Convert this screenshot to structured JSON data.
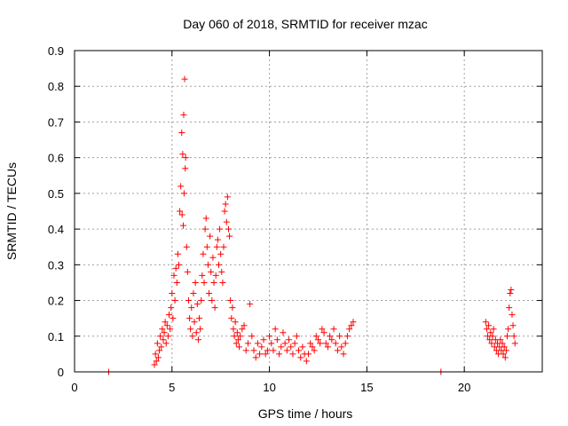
{
  "chart_data": {
    "type": "scatter",
    "title": "Day 060 of 2018, SRMTID for receiver mzac",
    "xlabel": "GPS time / hours",
    "ylabel": "SRMTID / TECUs",
    "xlim": [
      0,
      24
    ],
    "ylim": [
      0,
      0.9
    ],
    "x_ticks": [
      0,
      5,
      10,
      15,
      20
    ],
    "x_tick_labels": [
      "0",
      "5",
      "10",
      "15",
      "20"
    ],
    "y_ticks": [
      0,
      0.1,
      0.2,
      0.3,
      0.4,
      0.5,
      0.6,
      0.7,
      0.8,
      0.9
    ],
    "y_tick_labels": [
      "0",
      "0.1",
      "0.2",
      "0.3",
      "0.4",
      "0.5",
      "0.6",
      "0.7",
      "0.8",
      "0.9"
    ],
    "grid": true,
    "marker": "+",
    "color": "#ff0000",
    "series": [
      {
        "name": "SRMTID",
        "x": [
          1.75,
          18.8,
          4.1,
          4.15,
          4.2,
          4.25,
          4.3,
          4.35,
          4.4,
          4.45,
          4.5,
          4.55,
          4.6,
          4.65,
          4.7,
          4.75,
          4.8,
          4.85,
          4.9,
          4.95,
          5.0,
          5.05,
          5.1,
          5.15,
          5.2,
          5.25,
          5.3,
          5.35,
          5.4,
          5.45,
          5.5,
          5.52,
          5.55,
          5.58,
          5.6,
          5.62,
          5.65,
          5.68,
          5.7,
          5.75,
          5.8,
          5.85,
          5.9,
          5.95,
          6.0,
          6.05,
          6.1,
          6.15,
          6.2,
          6.25,
          6.3,
          6.35,
          6.4,
          6.45,
          6.5,
          6.55,
          6.6,
          6.65,
          6.7,
          6.75,
          6.8,
          6.85,
          6.9,
          6.95,
          7.0,
          7.05,
          7.1,
          7.15,
          7.2,
          7.25,
          7.3,
          7.35,
          7.4,
          7.45,
          7.5,
          7.55,
          7.6,
          7.65,
          7.7,
          7.75,
          7.8,
          7.85,
          7.9,
          7.95,
          8.0,
          8.05,
          8.1,
          8.15,
          8.2,
          8.25,
          8.3,
          8.35,
          8.4,
          8.45,
          8.5,
          8.6,
          8.7,
          8.8,
          8.9,
          9.0,
          9.1,
          9.2,
          9.3,
          9.4,
          9.5,
          9.6,
          9.7,
          9.8,
          9.9,
          10.0,
          10.1,
          10.2,
          10.3,
          10.4,
          10.5,
          10.6,
          10.7,
          10.8,
          10.9,
          11.0,
          11.1,
          11.2,
          11.3,
          11.4,
          11.5,
          11.6,
          11.7,
          11.8,
          11.9,
          12.0,
          12.1,
          12.2,
          12.3,
          12.4,
          12.5,
          12.6,
          12.7,
          12.8,
          12.9,
          13.0,
          13.1,
          13.2,
          13.3,
          13.4,
          13.5,
          13.6,
          13.7,
          13.8,
          13.9,
          14.0,
          14.1,
          14.2,
          14.3,
          21.1,
          21.15,
          21.2,
          21.25,
          21.3,
          21.35,
          21.4,
          21.45,
          21.5,
          21.55,
          21.6,
          21.65,
          21.7,
          21.75,
          21.8,
          21.85,
          21.9,
          21.95,
          22.0,
          22.05,
          22.1,
          22.15,
          22.2,
          22.25,
          22.3,
          22.35,
          22.4,
          22.45,
          22.5,
          22.55,
          22.6
        ],
        "y": [
          0.0,
          0.0,
          0.02,
          0.05,
          0.03,
          0.08,
          0.04,
          0.06,
          0.1,
          0.07,
          0.12,
          0.09,
          0.11,
          0.14,
          0.08,
          0.13,
          0.1,
          0.16,
          0.12,
          0.18,
          0.22,
          0.15,
          0.27,
          0.2,
          0.29,
          0.25,
          0.33,
          0.3,
          0.45,
          0.52,
          0.67,
          0.44,
          0.61,
          0.41,
          0.72,
          0.5,
          0.82,
          0.57,
          0.6,
          0.35,
          0.28,
          0.2,
          0.15,
          0.12,
          0.18,
          0.1,
          0.22,
          0.14,
          0.25,
          0.11,
          0.19,
          0.09,
          0.15,
          0.12,
          0.2,
          0.27,
          0.33,
          0.25,
          0.4,
          0.43,
          0.35,
          0.3,
          0.22,
          0.38,
          0.28,
          0.2,
          0.32,
          0.25,
          0.18,
          0.27,
          0.35,
          0.37,
          0.3,
          0.4,
          0.33,
          0.28,
          0.25,
          0.35,
          0.45,
          0.47,
          0.42,
          0.49,
          0.4,
          0.38,
          0.2,
          0.15,
          0.18,
          0.12,
          0.1,
          0.14,
          0.08,
          0.11,
          0.09,
          0.07,
          0.1,
          0.12,
          0.13,
          0.06,
          0.08,
          0.19,
          0.1,
          0.06,
          0.04,
          0.08,
          0.05,
          0.07,
          0.09,
          0.05,
          0.06,
          0.1,
          0.08,
          0.06,
          0.12,
          0.09,
          0.05,
          0.07,
          0.11,
          0.08,
          0.06,
          0.09,
          0.07,
          0.05,
          0.08,
          0.1,
          0.06,
          0.04,
          0.07,
          0.05,
          0.03,
          0.05,
          0.08,
          0.07,
          0.06,
          0.1,
          0.09,
          0.08,
          0.12,
          0.11,
          0.08,
          0.07,
          0.1,
          0.09,
          0.12,
          0.08,
          0.06,
          0.1,
          0.07,
          0.05,
          0.08,
          0.1,
          0.12,
          0.13,
          0.14,
          0.14,
          0.12,
          0.1,
          0.13,
          0.09,
          0.11,
          0.08,
          0.1,
          0.12,
          0.07,
          0.09,
          0.06,
          0.08,
          0.05,
          0.07,
          0.09,
          0.06,
          0.08,
          0.05,
          0.07,
          0.04,
          0.06,
          0.1,
          0.12,
          0.18,
          0.22,
          0.23,
          0.16,
          0.13,
          0.1,
          0.08
        ]
      }
    ]
  }
}
